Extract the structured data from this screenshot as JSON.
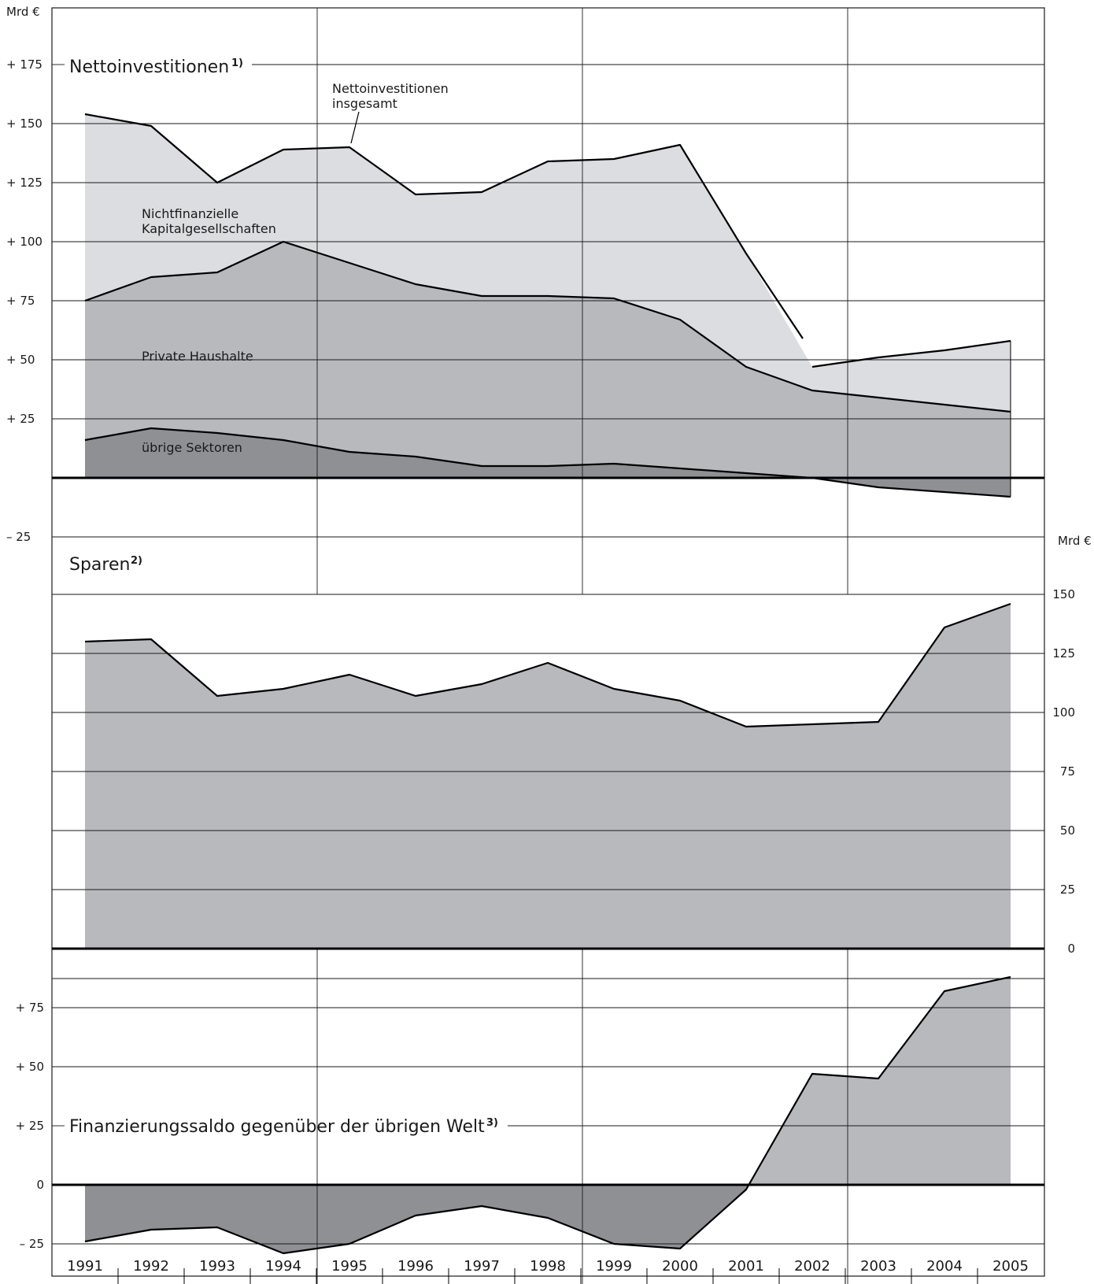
{
  "chart_data": [
    {
      "type": "area",
      "title": "Nettoinvestitionen",
      "title_footnote": "1)",
      "unit": "Mrd €",
      "ylim": [
        -25,
        175
      ],
      "yticks": [
        175,
        150,
        125,
        100,
        75,
        50,
        25,
        0,
        -25
      ],
      "ytick_labels": [
        "+ 175",
        "+ 150",
        "+ 125",
        "+ 100",
        "+   75",
        "+   50",
        "+   25",
        "0",
        "–   25"
      ],
      "x": [
        1991,
        1992,
        1993,
        1994,
        1995,
        1996,
        1997,
        1998,
        1999,
        2000,
        2001,
        2002,
        2003,
        2004,
        2005
      ],
      "series": [
        {
          "name": "übrige Sektoren",
          "values": [
            16,
            21,
            19,
            16,
            11,
            9,
            5,
            5,
            6,
            4,
            2,
            0,
            -4,
            -6,
            -8
          ],
          "color": "#8f9094"
        },
        {
          "name": "Private Haushalte",
          "values": [
            59,
            64,
            68,
            84,
            80,
            73,
            72,
            72,
            70,
            63,
            45,
            37,
            38,
            37,
            36
          ],
          "color": "#b8b9bd"
        },
        {
          "name": "Nichtfinanzielle Kapitalgesellschaften",
          "values": [
            79,
            64,
            38,
            39,
            49,
            38,
            44,
            57,
            59,
            74,
            48,
            10,
            17,
            23,
            30
          ],
          "color": "#dcdde0"
        }
      ],
      "total_label": "Nettoinvestitionen insgesamt",
      "total_label_lines": [
        "Nettoinvestitionen",
        "insgesamt"
      ],
      "total_values": [
        154,
        149,
        125,
        139,
        140,
        120,
        121,
        134,
        135,
        141,
        95,
        47,
        51,
        54,
        58
      ],
      "series_label_lines": [
        [
          "übrige Sektoren"
        ],
        [
          "Private Haushalte"
        ],
        [
          "Nichtfinanzielle",
          "Kapitalgesellschaften"
        ]
      ],
      "grid": true
    },
    {
      "type": "area",
      "title": "Sparen",
      "title_footnote": "2)",
      "unit": "Mrd €",
      "ylim": [
        0,
        150
      ],
      "yticks": [
        150,
        125,
        100,
        75,
        50,
        25,
        0
      ],
      "ytick_labels": [
        "150",
        "125",
        "100",
        "75",
        "50",
        "25",
        "0"
      ],
      "axis_side": "right",
      "x": [
        1991,
        1992,
        1993,
        1994,
        1995,
        1996,
        1997,
        1998,
        1999,
        2000,
        2001,
        2002,
        2003,
        2004,
        2005
      ],
      "series": [
        {
          "name": "Sparen",
          "values": [
            130,
            131,
            107,
            110,
            116,
            107,
            112,
            121,
            110,
            105,
            94,
            95,
            96,
            136,
            146
          ],
          "color": "#b8b9bd"
        }
      ],
      "grid": true
    },
    {
      "type": "area",
      "title": "Finanzierungssaldo gegenüber der übrigen Welt",
      "title_footnote": "3)",
      "ylim": [
        -25,
        88
      ],
      "yticks": [
        75,
        50,
        25,
        0,
        -25
      ],
      "ytick_labels": [
        "+ 75",
        "+ 50",
        "+ 25",
        "0",
        "– 25"
      ],
      "x": [
        1991,
        1992,
        1993,
        1994,
        1995,
        1996,
        1997,
        1998,
        1999,
        2000,
        2001,
        2002,
        2003,
        2004,
        2005
      ],
      "series": [
        {
          "name": "Finanzierungssaldo gegenüber der übrigen Welt",
          "values": [
            -24,
            -19,
            -18,
            -29,
            -25,
            -13,
            -9,
            -14,
            -25,
            -27,
            -2,
            47,
            45,
            82,
            88
          ],
          "positive_color": "#b8b9bd",
          "negative_color": "#8f9094"
        }
      ],
      "grid": true
    }
  ],
  "x_axis": {
    "year_labels": [
      "1991",
      "1992",
      "1993",
      "1994",
      "1995",
      "1996",
      "1997",
      "1998",
      "1999",
      "2000",
      "2001",
      "2002",
      "2003",
      "2004",
      "2005"
    ]
  }
}
